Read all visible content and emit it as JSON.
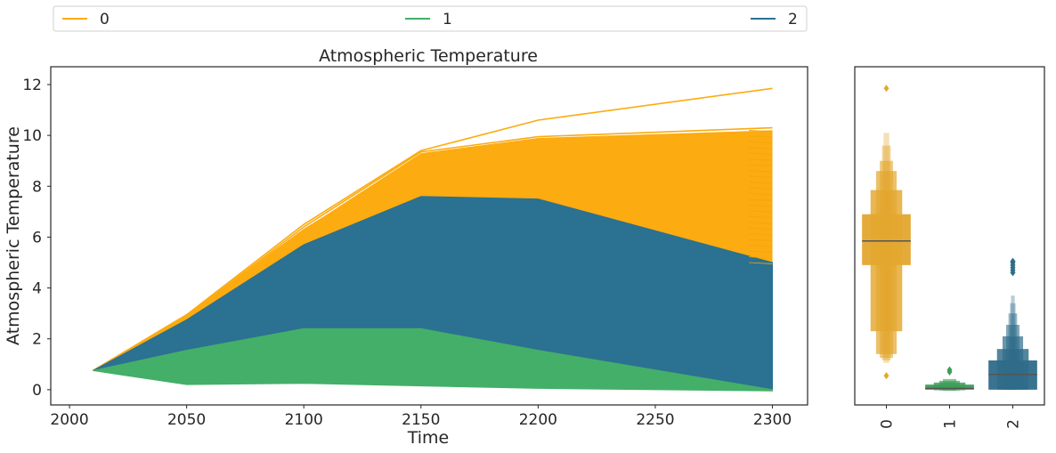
{
  "chart_data": [
    {
      "type": "area",
      "title": "Atmospheric Temperature",
      "xlabel": "Time",
      "ylabel": "Atmospheric Temperature",
      "xlim": [
        1992,
        2315
      ],
      "ylim": [
        -0.6,
        12.7
      ],
      "xticks": [
        2000,
        2050,
        2100,
        2150,
        2200,
        2250,
        2300
      ],
      "yticks": [
        0,
        2,
        4,
        6,
        8,
        10,
        12
      ],
      "grid": false,
      "x": [
        2010,
        2050,
        2100,
        2150,
        2200,
        2300
      ],
      "series": [
        {
          "name": "0",
          "color": "#fcab10",
          "upper": [
            0.75,
            2.95,
            6.5,
            9.4,
            10.6,
            11.85
          ],
          "lower": [
            0.75,
            2.75,
            5.7,
            7.6,
            7.5,
            5.0
          ],
          "dense_upper": [
            0.75,
            2.9,
            6.3,
            9.3,
            9.9,
            10.2
          ],
          "outlier_lines": [
            [
              0.75,
              2.95,
              6.5,
              9.4,
              10.6,
              11.85
            ],
            [
              0.75,
              2.9,
              6.4,
              9.35,
              9.95,
              10.3
            ],
            [
              0.75,
              2.9,
              6.3,
              9.1,
              9.7,
              9.0
            ],
            [
              0.75,
              2.85,
              6.1,
              8.6,
              9.2,
              8.5
            ],
            [
              0.75,
              2.85,
              6.0,
              8.4,
              8.9,
              7.0
            ]
          ]
        },
        {
          "name": "1",
          "color": "#44af69",
          "upper": [
            0.75,
            1.55,
            2.4,
            2.4,
            1.55,
            0.0
          ],
          "lower": [
            0.75,
            0.2,
            0.25,
            0.15,
            0.05,
            -0.05
          ]
        },
        {
          "name": "2",
          "color": "#2b7191",
          "upper": [
            0.75,
            2.75,
            5.7,
            7.6,
            7.5,
            5.0
          ],
          "lower": [
            0.75,
            1.55,
            2.4,
            2.4,
            1.55,
            0.0
          ]
        }
      ],
      "legend": {
        "placement": "top",
        "entries": [
          "0",
          "1",
          "2"
        ]
      }
    },
    {
      "type": "boxen",
      "categories": [
        "0",
        "1",
        "2"
      ],
      "ylim": [
        -0.6,
        12.7
      ],
      "grid": false,
      "boxes": [
        {
          "category": "0",
          "color": "#e3a72f",
          "median": 5.85,
          "levels": [
            [
              4.9,
              6.9
            ],
            [
              2.3,
              7.85
            ],
            [
              1.4,
              8.6
            ],
            [
              1.25,
              9.0
            ],
            [
              1.15,
              9.6
            ],
            [
              1.05,
              10.1
            ]
          ],
          "outliers": [
            11.85,
            0.55
          ]
        },
        {
          "category": "1",
          "color": "#3d9e57",
          "median": 0.05,
          "levels": [
            [
              0.0,
              0.2
            ],
            [
              -0.02,
              0.28
            ],
            [
              -0.03,
              0.35
            ],
            [
              -0.04,
              0.42
            ]
          ],
          "outliers": [
            0.7,
            0.78
          ]
        },
        {
          "category": "2",
          "color": "#2f6c8a",
          "median": 0.6,
          "levels": [
            [
              0.0,
              1.15
            ],
            [
              0.0,
              1.6
            ],
            [
              0.0,
              2.1
            ],
            [
              0.0,
              2.55
            ],
            [
              0.0,
              3.0
            ],
            [
              0.0,
              3.4
            ],
            [
              0.0,
              3.7
            ]
          ],
          "outliers": [
            4.6,
            4.7,
            4.8,
            4.9,
            5.0,
            5.05
          ]
        }
      ]
    }
  ]
}
